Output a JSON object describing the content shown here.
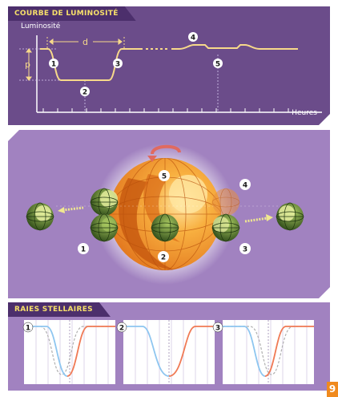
{
  "light_curve": {
    "title": "COURBE DE LUMINOSITÉ",
    "y_label": "Luminosité",
    "x_label": "Heures",
    "span_label": "d",
    "depth_label": "p",
    "markers": [
      "1",
      "2",
      "3",
      "4",
      "5"
    ]
  },
  "orbit": {
    "markers": [
      "1",
      "2",
      "3",
      "4",
      "5"
    ]
  },
  "spectral_lines": {
    "title": "RAIES STELLAIRES",
    "markers": [
      "1",
      "2",
      "3"
    ]
  },
  "page_number": "9",
  "colors": {
    "curve": "#f7d98a",
    "blueshift": "#8ec6f0",
    "redshift": "#f07a55",
    "tab_text": "#f7e06a",
    "page_tab": "#f08a1e"
  }
}
